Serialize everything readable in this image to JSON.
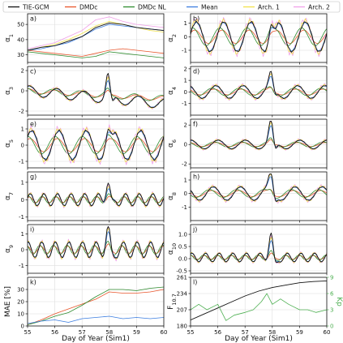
{
  "legend": [
    {
      "name": "TIE-GCM",
      "color": "#111111"
    },
    {
      "name": "DMDc",
      "color": "#e8552b"
    },
    {
      "name": "DMDc NL",
      "color": "#2e8b2e"
    },
    {
      "name": "Mean",
      "color": "#3b7de0"
    },
    {
      "name": "Arch. 1",
      "color": "#f2e24a"
    },
    {
      "name": "Arch. 2",
      "color": "#f0a0e8"
    }
  ],
  "xlabel": "Day of Year (Sim1)",
  "x_ticks": [
    "55",
    "56",
    "57",
    "58",
    "59",
    "60"
  ],
  "chart_data": [
    {
      "type": "line",
      "panel": "a)",
      "ylabel": "α1",
      "xlim": [
        55,
        60
      ],
      "ylim": [
        25,
        57
      ],
      "y_ticks": [
        30,
        40,
        50
      ],
      "series": [
        {
          "name": "TIE-GCM",
          "x": [
            55,
            55.5,
            56,
            56.5,
            57,
            57.5,
            58,
            58.5,
            59,
            59.5,
            60
          ],
          "values": [
            33,
            35,
            36,
            39,
            42,
            48,
            51,
            50,
            48,
            47,
            46
          ]
        },
        {
          "name": "DMDc",
          "x": [
            55,
            55.5,
            56,
            56.5,
            57,
            57.5,
            58,
            58.5,
            59,
            59.5,
            60
          ],
          "values": [
            33,
            32,
            31,
            30,
            29,
            31,
            33,
            34,
            33,
            32,
            31
          ]
        },
        {
          "name": "DMDc NL",
          "x": [
            55,
            55.5,
            56,
            56.5,
            57,
            57.5,
            58,
            58.5,
            59,
            59.5,
            60
          ],
          "values": [
            32,
            31,
            30,
            29,
            28,
            29,
            32,
            31,
            30,
            29,
            28
          ]
        },
        {
          "name": "Mean",
          "x": [
            55,
            55.5,
            56,
            56.5,
            57,
            57.5,
            58,
            58.5,
            59,
            59.5,
            60
          ],
          "values": [
            33,
            34,
            36,
            38,
            42,
            47,
            50,
            49,
            48,
            47,
            46
          ]
        },
        {
          "name": "Arch. 1",
          "x": [
            55,
            55.5,
            56,
            56.5,
            57,
            57.5,
            58,
            58.5,
            59,
            59.5,
            60
          ],
          "values": [
            33,
            35,
            37,
            40,
            44,
            49,
            52,
            50,
            48,
            46,
            45
          ]
        },
        {
          "name": "Arch. 2",
          "x": [
            55,
            55.5,
            56,
            56.5,
            57,
            57.5,
            58,
            58.5,
            59,
            59.5,
            60
          ],
          "values": [
            34,
            36,
            38,
            42,
            46,
            53,
            55,
            52,
            50,
            49,
            48
          ]
        }
      ]
    },
    {
      "type": "line",
      "panel": "b)",
      "ylabel": "α2",
      "xlim": [
        55,
        60
      ],
      "ylim": [
        -1.9,
        1.7
      ],
      "y_ticks": [
        -1,
        0,
        1
      ],
      "osc": {
        "amp": 1.1,
        "freq": 1,
        "phase": 0.2,
        "spike": 1.0
      }
    },
    {
      "type": "line",
      "panel": "c)",
      "ylabel": "α3",
      "xlim": [
        55,
        60
      ],
      "ylim": [
        -2.4,
        2.4
      ],
      "y_ticks": [
        -2,
        0,
        2
      ],
      "osc": {
        "amp": 0.5,
        "freq": 1,
        "phase": 1.1,
        "spike": 2.2,
        "trend": -0.25
      }
    },
    {
      "type": "line",
      "panel": "d)",
      "ylabel": "α4",
      "xlim": [
        55,
        60
      ],
      "ylim": [
        -2.0,
        2.2
      ],
      "y_ticks": [
        -1,
        0,
        1,
        2
      ],
      "osc": {
        "amp": 0.55,
        "freq": 1,
        "phase": 2.0,
        "spike": 1.3
      }
    },
    {
      "type": "line",
      "panel": "e)",
      "ylabel": "α5",
      "xlim": [
        55,
        60
      ],
      "ylim": [
        -1.4,
        1.6
      ],
      "y_ticks": [
        -1,
        0,
        1
      ],
      "osc": {
        "amp": 0.9,
        "freq": 1,
        "phase": 0.6,
        "spike": 0.7
      }
    },
    {
      "type": "line",
      "panel": "f)",
      "ylabel": "α6",
      "xlim": [
        55,
        60
      ],
      "ylim": [
        -2.4,
        2.6
      ],
      "y_ticks": [
        -2,
        0,
        2
      ],
      "osc": {
        "amp": 0.45,
        "freq": 1,
        "phase": 1.5,
        "spike": 2.4
      }
    },
    {
      "type": "line",
      "panel": "g)",
      "ylabel": "α7",
      "xlim": [
        55,
        60
      ],
      "ylim": [
        -1.2,
        1.6
      ],
      "y_ticks": [
        -1,
        0,
        1
      ],
      "osc": {
        "amp": 0.35,
        "freq": 2,
        "phase": 0.3,
        "spike": 1.1
      }
    },
    {
      "type": "line",
      "panel": "h)",
      "ylabel": "α8",
      "xlim": [
        55,
        60
      ],
      "ylim": [
        -2.0,
        1.6
      ],
      "y_ticks": [
        -1,
        0,
        1
      ],
      "osc": {
        "amp": 0.5,
        "freq": 1,
        "phase": 2.6,
        "spike": 1.4
      }
    },
    {
      "type": "line",
      "panel": "i)",
      "ylabel": "α9",
      "xlim": [
        55,
        60
      ],
      "ylim": [
        -1.5,
        1.6
      ],
      "y_ticks": [
        -1,
        0,
        1
      ],
      "osc": {
        "amp": 0.5,
        "freq": 2,
        "phase": 1.3,
        "spike": 1.3
      }
    },
    {
      "type": "line",
      "panel": "j)",
      "ylabel": "α10",
      "xlim": [
        55,
        60
      ],
      "ylim": [
        -0.6,
        1.4
      ],
      "y_ticks": [
        -0.5,
        0.0,
        0.5,
        1.0
      ],
      "osc": {
        "amp": 0.18,
        "freq": 2,
        "phase": 0.9,
        "spike": 1.0,
        "base": 0.05
      }
    },
    {
      "type": "line",
      "panel": "k)",
      "ylabel": "MAE [%]",
      "xlim": [
        55,
        60
      ],
      "ylim": [
        0,
        40
      ],
      "y_ticks": [
        0,
        10,
        20,
        30
      ],
      "series": [
        {
          "name": "DMDc",
          "x": [
            55,
            55.5,
            56,
            56.5,
            57,
            57.5,
            58,
            58.5,
            59,
            59.5,
            60
          ],
          "values": [
            1,
            5,
            10,
            14,
            18,
            22,
            28,
            27,
            27,
            28,
            30
          ]
        },
        {
          "name": "DMDc NL",
          "x": [
            55,
            55.5,
            56,
            56.5,
            57,
            57.5,
            58,
            58.5,
            59,
            59.5,
            60
          ],
          "values": [
            1,
            4,
            8,
            11,
            17,
            24,
            30,
            30,
            29,
            31,
            32
          ]
        },
        {
          "name": "Mean",
          "x": [
            55,
            55.5,
            56,
            56.5,
            57,
            57.5,
            58,
            58.5,
            59,
            59.5,
            60
          ],
          "values": [
            2,
            4,
            5,
            3,
            6,
            7,
            8,
            6,
            7,
            6,
            7
          ]
        }
      ]
    },
    {
      "type": "line",
      "panel": "l)",
      "ylabel": "F10.7",
      "ylabel_right": "Kp",
      "xlim": [
        55,
        60
      ],
      "ylim": [
        180,
        261
      ],
      "y_ticks": [
        180,
        207,
        234,
        261
      ],
      "ylim_right": [
        0,
        9
      ],
      "y_ticks_right": [
        0,
        3,
        6,
        9
      ],
      "series": [
        {
          "name": "F10.7",
          "axis": "left",
          "color": "#111111",
          "x": [
            55,
            55.5,
            56,
            56.5,
            57,
            57.5,
            58,
            58.5,
            59,
            59.5,
            60
          ],
          "values": [
            190,
            200,
            210,
            220,
            230,
            238,
            244,
            248,
            252,
            254,
            255
          ]
        },
        {
          "name": "Kp",
          "axis": "right",
          "color": "#4caf50",
          "x": [
            55,
            55.3,
            55.6,
            56,
            56.3,
            56.6,
            57,
            57.3,
            57.6,
            57.8,
            58,
            58.3,
            58.6,
            59,
            59.3,
            59.6,
            60
          ],
          "values": [
            3,
            4,
            3,
            4,
            1,
            2,
            2.5,
            3,
            4.5,
            6,
            4,
            5,
            4,
            3,
            3,
            2.5,
            3
          ]
        }
      ]
    }
  ]
}
